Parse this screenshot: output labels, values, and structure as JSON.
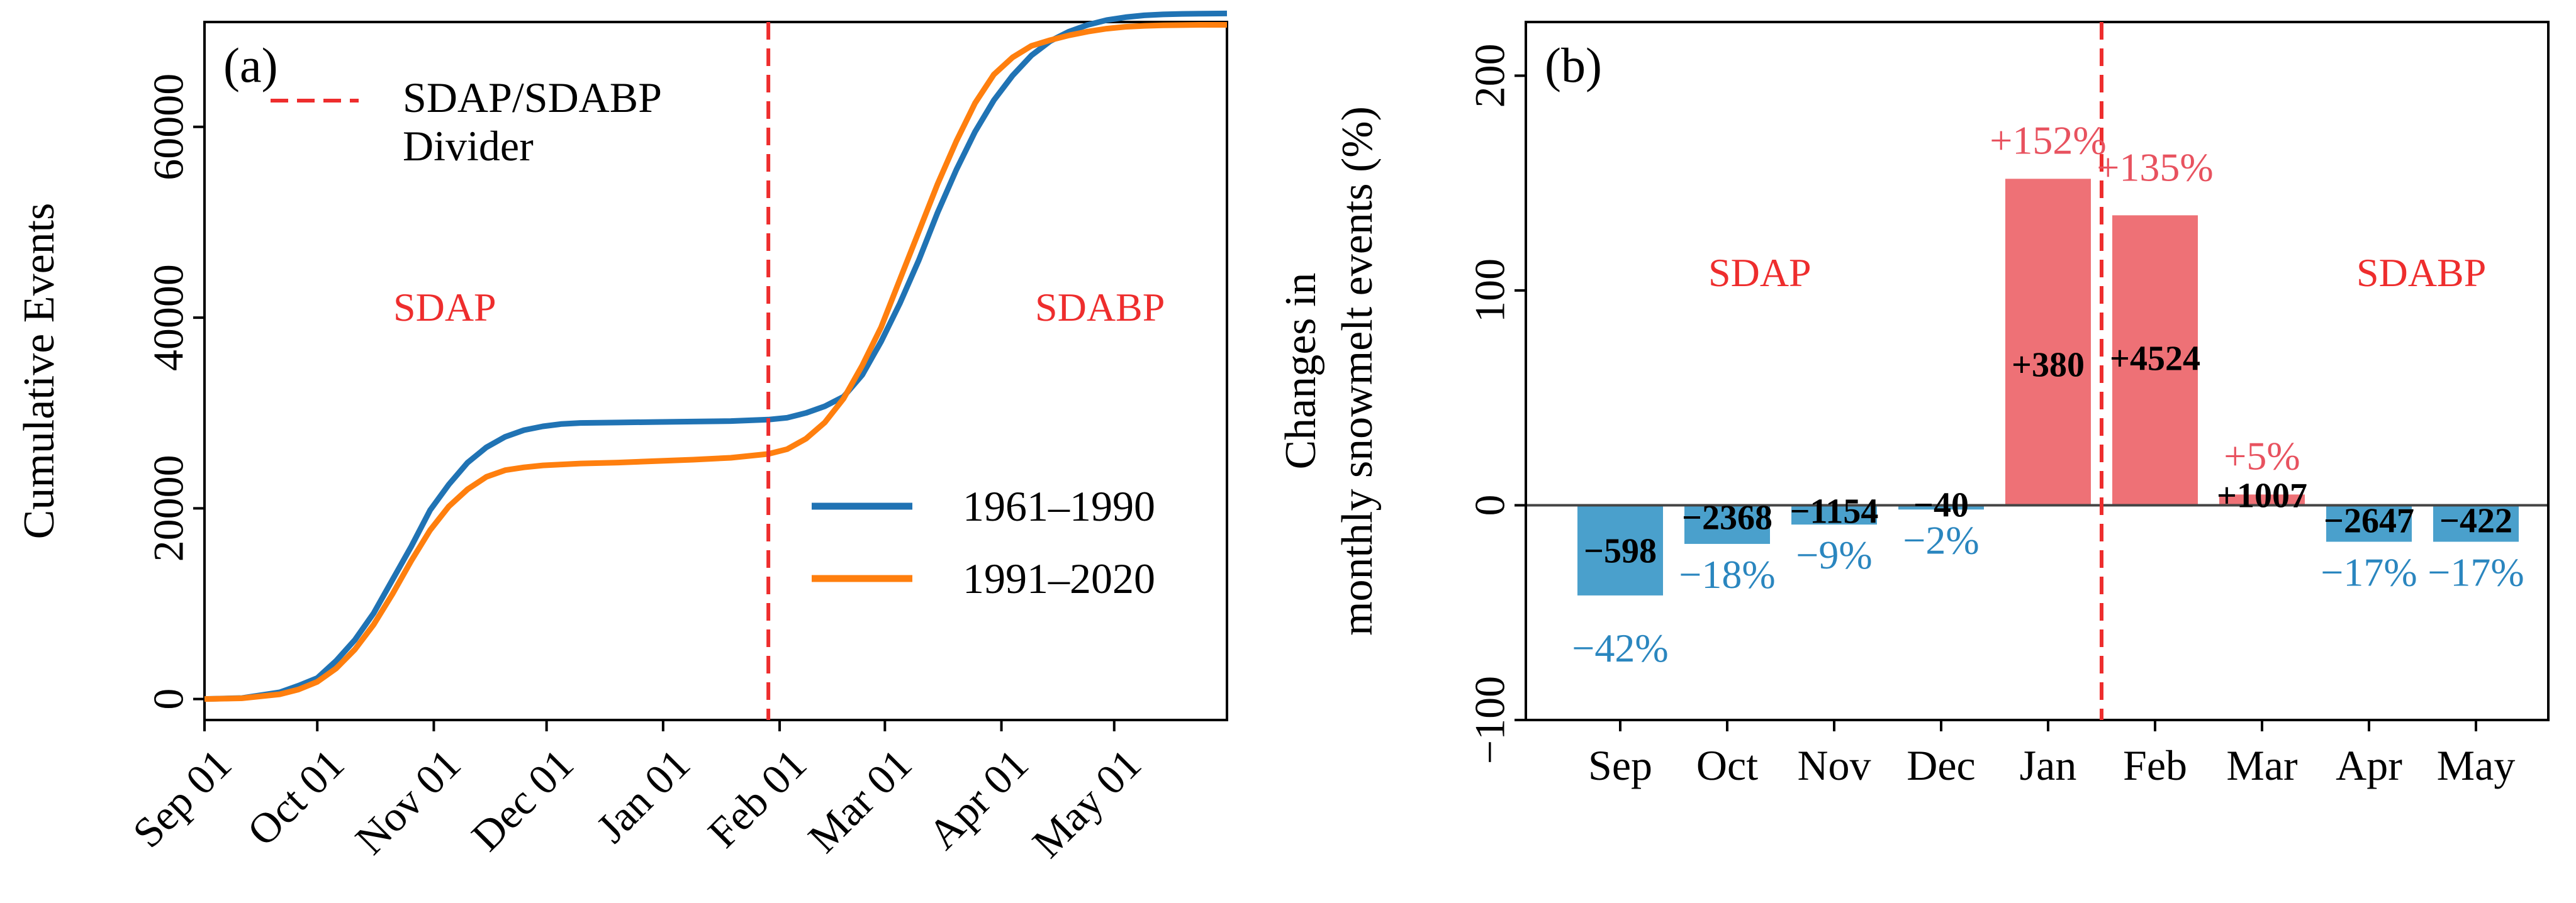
{
  "colors": {
    "series_1961": "#2073b4",
    "series_1991": "#ff7f0e",
    "divider": "#ee2d2d",
    "bar_neg": "#4aa0cc",
    "bar_pos": "#ee7176",
    "pct_neg": "#2a86bf",
    "pct_pos": "#e8525f"
  },
  "chart_data": [
    {
      "type": "line",
      "panel_label": "(a)",
      "ylabel": "Cumulative Events",
      "xlabel": "",
      "x_ticks": [
        "Sep 01",
        "Oct 01",
        "Nov 01",
        "Dec 01",
        "Jan 01",
        "Feb 01",
        "Mar 01",
        "Apr 01",
        "May 01"
      ],
      "x_tick_days": [
        0,
        30,
        61,
        91,
        122,
        153,
        181,
        212,
        242
      ],
      "xlim": [
        0,
        272
      ],
      "ylim": [
        -2200,
        71000
      ],
      "y_ticks": [
        0,
        20000,
        40000,
        60000
      ],
      "y_tick_labels": [
        "0",
        "20000",
        "40000",
        "60000"
      ],
      "divider_day": 150,
      "divider_label": "SDAP/SDABP",
      "divider_label2": "Divider",
      "region_left": "SDAP",
      "region_right": "SDABP",
      "series": [
        {
          "name": "1961–1990",
          "x": [
            0,
            10,
            20,
            25,
            30,
            35,
            40,
            45,
            50,
            55,
            60,
            65,
            70,
            75,
            80,
            85,
            90,
            95,
            100,
            110,
            120,
            130,
            140,
            150,
            155,
            160,
            165,
            170,
            175,
            180,
            185,
            190,
            195,
            200,
            205,
            210,
            215,
            220,
            225,
            230,
            235,
            240,
            245,
            250,
            255,
            260,
            265,
            272
          ],
          "y": [
            0,
            100,
            700,
            1400,
            2200,
            4000,
            6200,
            9000,
            12500,
            16000,
            19800,
            22500,
            24800,
            26400,
            27500,
            28200,
            28600,
            28850,
            28950,
            29000,
            29050,
            29100,
            29150,
            29300,
            29500,
            30000,
            30700,
            31700,
            34000,
            37500,
            41500,
            46000,
            51000,
            55500,
            59500,
            62800,
            65400,
            67500,
            69000,
            70000,
            70700,
            71200,
            71500,
            71700,
            71800,
            71850,
            71880,
            71900
          ]
        },
        {
          "name": "1991–2020",
          "x": [
            0,
            10,
            20,
            25,
            30,
            35,
            40,
            45,
            50,
            55,
            60,
            65,
            70,
            75,
            80,
            85,
            90,
            95,
            100,
            110,
            120,
            130,
            140,
            150,
            155,
            160,
            165,
            170,
            175,
            180,
            185,
            190,
            195,
            200,
            205,
            210,
            215,
            220,
            225,
            230,
            235,
            240,
            245,
            250,
            255,
            260,
            265,
            272
          ],
          "y": [
            0,
            80,
            500,
            1000,
            1800,
            3200,
            5200,
            7800,
            11000,
            14500,
            17700,
            20200,
            22000,
            23300,
            24000,
            24300,
            24500,
            24600,
            24700,
            24800,
            24950,
            25100,
            25300,
            25700,
            26200,
            27300,
            29000,
            31500,
            35000,
            39000,
            44000,
            49000,
            54000,
            58500,
            62500,
            65500,
            67300,
            68500,
            69100,
            69600,
            70000,
            70300,
            70500,
            70600,
            70650,
            70680,
            70700,
            70700
          ]
        }
      ],
      "legend": "lower-right"
    },
    {
      "type": "bar",
      "panel_label": "(b)",
      "ylabel": "Changes in",
      "ylabel2": "monthly snowmelt events (%)",
      "categories": [
        "Sep",
        "Oct",
        "Nov",
        "Dec",
        "Jan",
        "Feb",
        "Mar",
        "Apr",
        "May"
      ],
      "values": [
        -42,
        -18,
        -9,
        -2,
        152,
        135,
        5,
        -17,
        -17
      ],
      "pct_labels": [
        "−42%",
        "−18%",
        "−9%",
        "−2%",
        "+152%",
        "+135%",
        "+5%",
        "−17%",
        "−17%"
      ],
      "count_labels": [
        "−598",
        "−2368",
        "−1154",
        "−40",
        "+380",
        "+4524",
        "+1007",
        "−2647",
        "−422"
      ],
      "ylim": [
        -100,
        225
      ],
      "y_ticks": [
        -100,
        0,
        100,
        200
      ],
      "y_tick_labels": [
        "−100",
        "0",
        "100",
        "200"
      ],
      "divider_between": [
        4,
        5
      ],
      "region_left": "SDAP",
      "region_right": "SDABP"
    }
  ]
}
